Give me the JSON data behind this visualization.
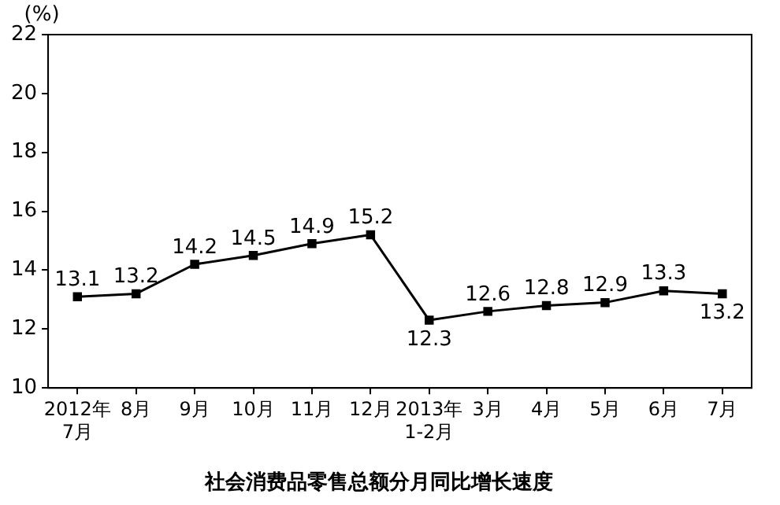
{
  "chart_data": {
    "type": "line",
    "title": "社会消费品零售总额分月同比增长速度",
    "ylabel": "(%)",
    "categories": [
      "2012年\n7月",
      "8月",
      "9月",
      "10月",
      "11月",
      "12月",
      "2013年\n1-2月",
      "3月",
      "4月",
      "5月",
      "6月",
      "7月"
    ],
    "series": [
      {
        "color": "#000000",
        "values": [
          13.1,
          13.2,
          14.2,
          14.5,
          14.9,
          15.2,
          12.3,
          12.6,
          12.8,
          12.9,
          13.3,
          13.2
        ]
      }
    ],
    "ylim": [
      10,
      22
    ],
    "yticks": [
      10,
      12,
      14,
      16,
      18,
      20,
      22
    ],
    "grid": false,
    "legend": false,
    "marker": "square",
    "line_style": "solid",
    "data_labels": true
  }
}
